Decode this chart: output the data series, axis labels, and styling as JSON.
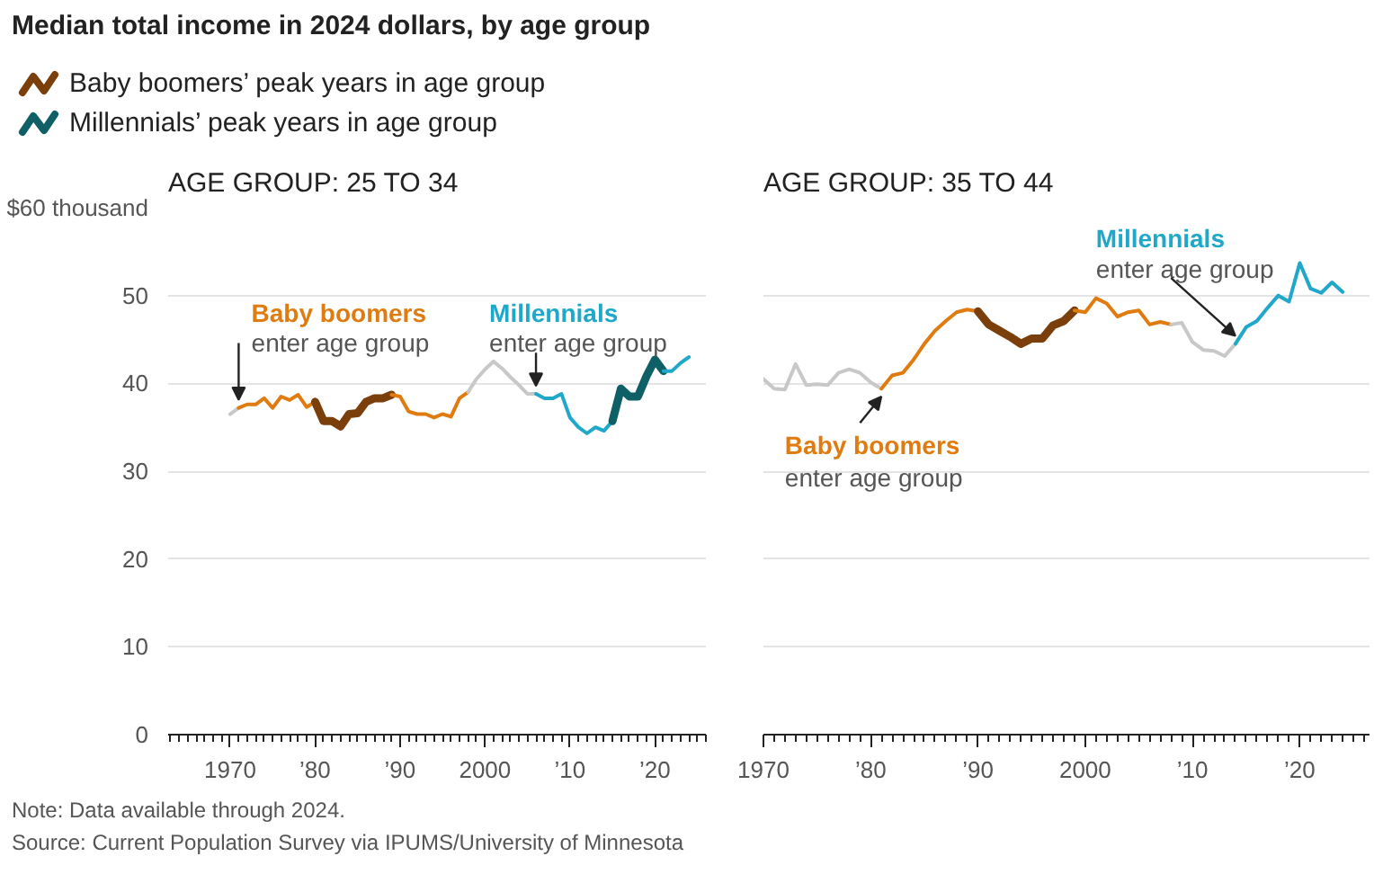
{
  "chart_data": [
    {
      "type": "line",
      "title": "Median total income in 2024 dollars, by age group",
      "subtitle": "AGE GROUP: 25 TO 34",
      "legend": "top",
      "grid": "y",
      "xlim": [
        1962.7,
        2026
      ],
      "ylim": [
        0,
        60
      ],
      "xticks": [
        1970,
        {
          "value": 1980,
          "label": "’80"
        },
        {
          "value": 1990,
          "label": "’90"
        },
        2000,
        {
          "value": 2010,
          "label": "’10"
        },
        {
          "value": 2020,
          "label": "’20"
        }
      ],
      "yticks": [
        0,
        10,
        20,
        30,
        40,
        50,
        {
          "value": 60,
          "label": "$60 thousand"
        }
      ],
      "series": [
        {
          "color": "#c8c8c8",
          "x": [
            1970,
            1971
          ],
          "values": [
            36.5,
            37.2
          ]
        },
        {
          "color": "#e07b10",
          "x": [
            1971,
            1972,
            1973,
            1974,
            1975,
            1976,
            1977,
            1978,
            1979,
            1980
          ],
          "values": [
            37.2,
            37.6,
            37.6,
            38.3,
            37.2,
            38.5,
            38.1,
            38.7,
            37.3,
            37.9
          ]
        },
        {
          "name": "Baby boomers’ peak years in age group",
          "color": "#7a3f0a",
          "x": [
            1980,
            1981,
            1982,
            1983,
            1984,
            1985,
            1986,
            1987,
            1988,
            1989
          ],
          "values": [
            37.9,
            35.7,
            35.7,
            35.1,
            36.5,
            36.6,
            37.9,
            38.3,
            38.3,
            38.7
          ]
        },
        {
          "color": "#e07b10",
          "x": [
            1989,
            1990,
            1991,
            1992,
            1993,
            1994,
            1995,
            1996,
            1997,
            1998
          ],
          "values": [
            38.7,
            38.5,
            36.8,
            36.5,
            36.5,
            36.1,
            36.5,
            36.2,
            38.3,
            39.0
          ]
        },
        {
          "color": "#c8c8c8",
          "x": [
            1998,
            1999,
            2000,
            2001,
            2002,
            2003,
            2004,
            2005,
            2006
          ],
          "values": [
            39.0,
            40.5,
            41.6,
            42.5,
            41.7,
            40.7,
            39.8,
            38.8,
            38.8
          ]
        },
        {
          "color": "#1fa8c9",
          "x": [
            2006,
            2007,
            2008,
            2009,
            2010,
            2011,
            2012,
            2013,
            2014,
            2015
          ],
          "values": [
            38.8,
            38.3,
            38.3,
            38.8,
            36.1,
            35.0,
            34.3,
            35.0,
            34.6,
            35.7
          ]
        },
        {
          "name": "Millennials’ peak years in age group",
          "color": "#0e5f66",
          "x": [
            2015,
            2016,
            2017,
            2018,
            2019,
            2020,
            2021
          ],
          "values": [
            35.7,
            39.4,
            38.5,
            38.5,
            40.8,
            42.7,
            41.4
          ]
        },
        {
          "color": "#1fa8c9",
          "x": [
            2021,
            2022,
            2023,
            2024
          ],
          "values": [
            41.4,
            41.4,
            42.3,
            43.0
          ]
        }
      ],
      "annotations": [
        {
          "text": "Baby boomers\nenter age group",
          "x": 1971,
          "y": 37.2
        },
        {
          "text": "Millennials\nenter age group",
          "x": 2006,
          "y": 38.8
        },
        "Note: Data available through 2024.",
        "Source: Current Population Survey via IPUMS/University of Minnesota"
      ]
    },
    {
      "type": "line",
      "title": "AGE GROUP: 35 TO 44",
      "grid": "y",
      "tick_labels": "x",
      "xlim": [
        1970,
        2026.5
      ],
      "ylim": [
        0,
        60
      ],
      "xticks": [
        1970,
        {
          "value": 1980,
          "label": "’80"
        },
        {
          "value": 1990,
          "label": "’90"
        },
        2000,
        {
          "value": 2010,
          "label": "’10"
        },
        {
          "value": 2020,
          "label": "’20"
        }
      ],
      "yticks": [
        0,
        10,
        20,
        30,
        40,
        50,
        60
      ],
      "series": [
        {
          "color": "#c8c8c8",
          "x": [
            1970,
            1971,
            1972,
            1973,
            1974,
            1975,
            1976,
            1977,
            1978,
            1979,
            1980,
            1981
          ],
          "values": [
            40.5,
            39.4,
            39.3,
            42.2,
            39.8,
            39.9,
            39.8,
            41.2,
            41.6,
            41.2,
            40.1,
            39.4
          ]
        },
        {
          "color": "#e07b10",
          "x": [
            1981,
            1982,
            1983,
            1984,
            1985,
            1986,
            1987,
            1988,
            1989,
            1990
          ],
          "values": [
            39.4,
            40.9,
            41.2,
            42.7,
            44.5,
            46.0,
            47.1,
            48.1,
            48.4,
            48.2
          ]
        },
        {
          "color": "#7a3f0a",
          "x": [
            1990,
            1991,
            1992,
            1993,
            1994,
            1995,
            1996,
            1997,
            1998,
            1999
          ],
          "values": [
            48.2,
            46.7,
            46.0,
            45.3,
            44.5,
            45.1,
            45.1,
            46.6,
            47.1,
            48.3
          ]
        },
        {
          "color": "#e07b10",
          "x": [
            1999,
            2000,
            2001,
            2002,
            2003,
            2004,
            2005,
            2006,
            2007,
            2008
          ],
          "values": [
            48.3,
            48.1,
            49.7,
            49.1,
            47.6,
            48.1,
            48.3,
            46.7,
            47.0,
            46.7
          ]
        },
        {
          "color": "#c8c8c8",
          "x": [
            2008,
            2009,
            2010,
            2011,
            2012,
            2013,
            2014
          ],
          "values": [
            46.7,
            46.9,
            44.7,
            43.8,
            43.7,
            43.1,
            44.5
          ]
        },
        {
          "color": "#1fa8c9",
          "x": [
            2014,
            2015,
            2016,
            2017,
            2018,
            2019,
            2020,
            2021,
            2022,
            2023,
            2024
          ],
          "values": [
            44.5,
            46.4,
            47.1,
            48.6,
            50.0,
            49.3,
            53.7,
            50.8,
            50.3,
            51.5,
            50.4
          ]
        }
      ],
      "annotations": [
        {
          "text": "Baby boomers\nenter age group",
          "x": 1981,
          "y": 39.4
        },
        {
          "text": "Millennials\nenter age group",
          "x": 2014,
          "y": 44.5
        }
      ]
    }
  ]
}
